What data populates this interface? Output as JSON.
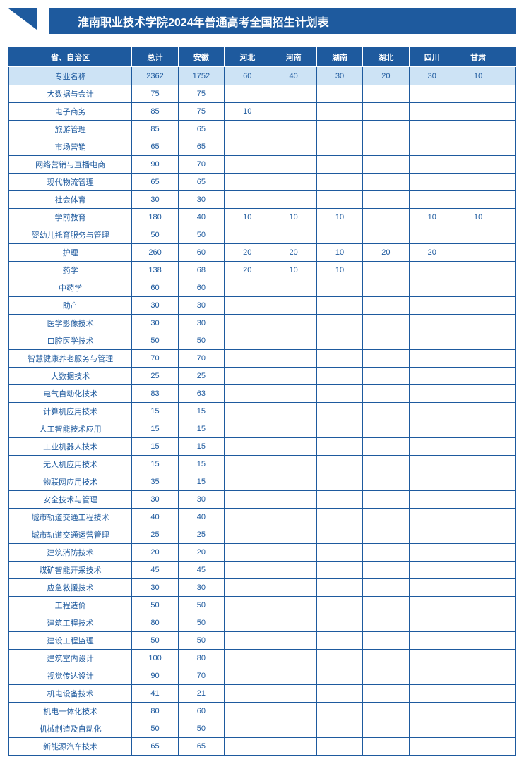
{
  "title": "淮南职业技术学院2024年普通高考全国招生计划表",
  "colors": {
    "primary": "#1e5a9e",
    "light_bg": "#cde3f5",
    "white": "#ffffff"
  },
  "table": {
    "header": [
      "省、自治区",
      "总计",
      "安徽",
      "河北",
      "河南",
      "湖南",
      "湖北",
      "四川",
      "甘肃",
      ""
    ],
    "sub_header": [
      "专业名称",
      "2362",
      "1752",
      "60",
      "40",
      "30",
      "20",
      "30",
      "10",
      ""
    ],
    "rows": [
      {
        "major": "大数据与会计",
        "vals": [
          "75",
          "75",
          "",
          "",
          "",
          "",
          "",
          "",
          ""
        ]
      },
      {
        "major": "电子商务",
        "vals": [
          "85",
          "75",
          "10",
          "",
          "",
          "",
          "",
          "",
          ""
        ]
      },
      {
        "major": "旅游管理",
        "vals": [
          "85",
          "65",
          "",
          "",
          "",
          "",
          "",
          "",
          ""
        ]
      },
      {
        "major": "市场营销",
        "vals": [
          "65",
          "65",
          "",
          "",
          "",
          "",
          "",
          "",
          ""
        ]
      },
      {
        "major": "网络营销与直播电商",
        "vals": [
          "90",
          "70",
          "",
          "",
          "",
          "",
          "",
          "",
          ""
        ]
      },
      {
        "major": "现代物流管理",
        "vals": [
          "65",
          "65",
          "",
          "",
          "",
          "",
          "",
          "",
          ""
        ]
      },
      {
        "major": "社会体育",
        "vals": [
          "30",
          "30",
          "",
          "",
          "",
          "",
          "",
          "",
          ""
        ]
      },
      {
        "major": "学前教育",
        "vals": [
          "180",
          "40",
          "10",
          "10",
          "10",
          "",
          "10",
          "10",
          ""
        ]
      },
      {
        "major": "婴幼儿托育服务与管理",
        "vals": [
          "50",
          "50",
          "",
          "",
          "",
          "",
          "",
          "",
          ""
        ]
      },
      {
        "major": "护理",
        "vals": [
          "260",
          "60",
          "20",
          "20",
          "10",
          "20",
          "20",
          "",
          ""
        ]
      },
      {
        "major": "药学",
        "vals": [
          "138",
          "68",
          "20",
          "10",
          "10",
          "",
          "",
          "",
          ""
        ]
      },
      {
        "major": "中药学",
        "vals": [
          "60",
          "60",
          "",
          "",
          "",
          "",
          "",
          "",
          ""
        ]
      },
      {
        "major": "助产",
        "vals": [
          "30",
          "30",
          "",
          "",
          "",
          "",
          "",
          "",
          ""
        ]
      },
      {
        "major": "医学影像技术",
        "vals": [
          "30",
          "30",
          "",
          "",
          "",
          "",
          "",
          "",
          ""
        ]
      },
      {
        "major": "口腔医学技术",
        "vals": [
          "50",
          "50",
          "",
          "",
          "",
          "",
          "",
          "",
          ""
        ]
      },
      {
        "major": "智慧健康养老服务与管理",
        "vals": [
          "70",
          "70",
          "",
          "",
          "",
          "",
          "",
          "",
          ""
        ]
      },
      {
        "major": "大数据技术",
        "vals": [
          "25",
          "25",
          "",
          "",
          "",
          "",
          "",
          "",
          ""
        ]
      },
      {
        "major": "电气自动化技术",
        "vals": [
          "83",
          "63",
          "",
          "",
          "",
          "",
          "",
          "",
          ""
        ]
      },
      {
        "major": "计算机应用技术",
        "vals": [
          "15",
          "15",
          "",
          "",
          "",
          "",
          "",
          "",
          ""
        ]
      },
      {
        "major": "人工智能技术应用",
        "vals": [
          "15",
          "15",
          "",
          "",
          "",
          "",
          "",
          "",
          ""
        ]
      },
      {
        "major": "工业机器人技术",
        "vals": [
          "15",
          "15",
          "",
          "",
          "",
          "",
          "",
          "",
          ""
        ]
      },
      {
        "major": "无人机应用技术",
        "vals": [
          "15",
          "15",
          "",
          "",
          "",
          "",
          "",
          "",
          ""
        ]
      },
      {
        "major": "物联网应用技术",
        "vals": [
          "35",
          "15",
          "",
          "",
          "",
          "",
          "",
          "",
          ""
        ]
      },
      {
        "major": "安全技术与管理",
        "vals": [
          "30",
          "30",
          "",
          "",
          "",
          "",
          "",
          "",
          ""
        ]
      },
      {
        "major": "城市轨道交通工程技术",
        "vals": [
          "40",
          "40",
          "",
          "",
          "",
          "",
          "",
          "",
          ""
        ]
      },
      {
        "major": "城市轨道交通运营管理",
        "vals": [
          "25",
          "25",
          "",
          "",
          "",
          "",
          "",
          "",
          ""
        ]
      },
      {
        "major": "建筑消防技术",
        "vals": [
          "20",
          "20",
          "",
          "",
          "",
          "",
          "",
          "",
          ""
        ]
      },
      {
        "major": "煤矿智能开采技术",
        "vals": [
          "45",
          "45",
          "",
          "",
          "",
          "",
          "",
          "",
          ""
        ]
      },
      {
        "major": "应急救援技术",
        "vals": [
          "30",
          "30",
          "",
          "",
          "",
          "",
          "",
          "",
          ""
        ]
      },
      {
        "major": "工程造价",
        "vals": [
          "50",
          "50",
          "",
          "",
          "",
          "",
          "",
          "",
          ""
        ]
      },
      {
        "major": "建筑工程技术",
        "vals": [
          "80",
          "50",
          "",
          "",
          "",
          "",
          "",
          "",
          ""
        ]
      },
      {
        "major": "建设工程监理",
        "vals": [
          "50",
          "50",
          "",
          "",
          "",
          "",
          "",
          "",
          ""
        ]
      },
      {
        "major": "建筑室内设计",
        "vals": [
          "100",
          "80",
          "",
          "",
          "",
          "",
          "",
          "",
          ""
        ]
      },
      {
        "major": "视觉传达设计",
        "vals": [
          "90",
          "70",
          "",
          "",
          "",
          "",
          "",
          "",
          ""
        ]
      },
      {
        "major": "机电设备技术",
        "vals": [
          "41",
          "21",
          "",
          "",
          "",
          "",
          "",
          "",
          ""
        ]
      },
      {
        "major": "机电一体化技术",
        "vals": [
          "80",
          "60",
          "",
          "",
          "",
          "",
          "",
          "",
          ""
        ]
      },
      {
        "major": "机械制造及自动化",
        "vals": [
          "50",
          "50",
          "",
          "",
          "",
          "",
          "",
          "",
          ""
        ]
      },
      {
        "major": "新能源汽车技术",
        "vals": [
          "65",
          "65",
          "",
          "",
          "",
          "",
          "",
          "",
          ""
        ]
      }
    ]
  }
}
